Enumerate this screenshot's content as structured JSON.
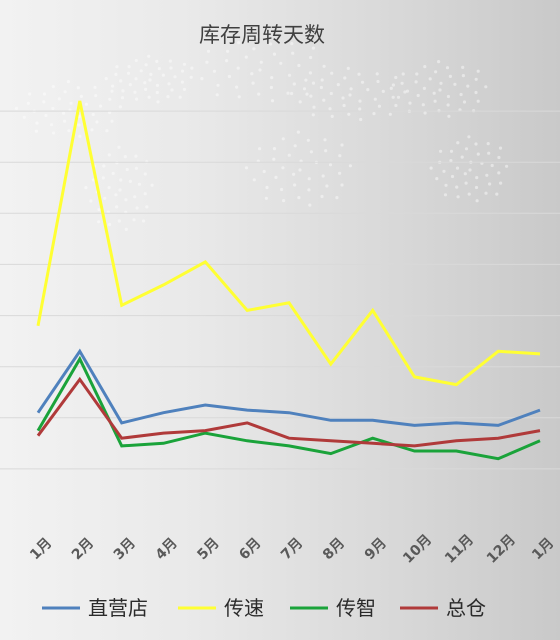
{
  "chart_data": {
    "type": "line",
    "title": "库存周转天数",
    "xlabel": "",
    "ylabel": "",
    "ylim": [
      0,
      90
    ],
    "grid": true,
    "legend_position": "bottom",
    "categories": [
      "1月",
      "2月",
      "3月",
      "4月",
      "5月",
      "6月",
      "7月",
      "8月",
      "9月",
      "10月",
      "11月",
      "12月",
      "1月"
    ],
    "series": [
      {
        "name": "直营店",
        "color": "#4f81bd",
        "values": [
          21,
          33,
          19,
          21,
          22.5,
          21.5,
          21,
          19.5,
          19.5,
          18.5,
          19,
          18.5,
          21.5
        ]
      },
      {
        "name": "传速",
        "color": "#ffff33",
        "values": [
          38,
          82,
          42,
          46,
          50.5,
          41,
          42.5,
          30.5,
          41,
          28,
          26.5,
          33,
          32.5
        ]
      },
      {
        "name": "传智",
        "color": "#1aa33a",
        "values": [
          17.5,
          31.5,
          14.5,
          15,
          17,
          15.5,
          14.5,
          13,
          16,
          13.5,
          13.5,
          12,
          15.5
        ]
      },
      {
        "name": "总仓",
        "color": "#b03a3a",
        "values": [
          16.5,
          27.5,
          16,
          17,
          17.5,
          19,
          16,
          15.5,
          15,
          14.5,
          15.5,
          16,
          17.5
        ]
      }
    ]
  }
}
